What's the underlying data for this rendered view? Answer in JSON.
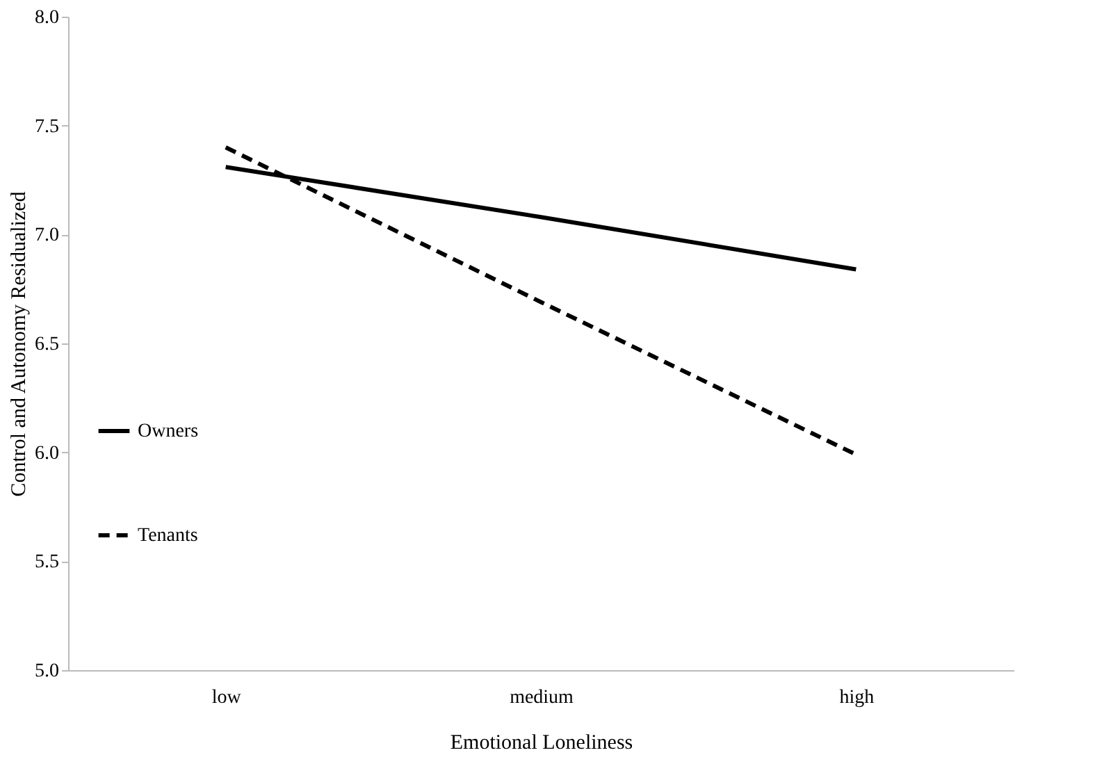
{
  "chart_data": {
    "type": "line",
    "xlabel": "Emotional Loneliness",
    "ylabel": "Control and Autonomy Residualized",
    "categories": [
      "low",
      "medium",
      "high"
    ],
    "series": [
      {
        "name": "Owners",
        "color": "#000000",
        "line_style": "solid",
        "values": [
          7.31,
          7.08,
          6.84
        ]
      },
      {
        "name": "Tenants",
        "color": "#000000",
        "line_style": "dashed",
        "values": [
          7.4,
          6.69,
          5.99
        ]
      }
    ],
    "ylim": [
      5.0,
      8.0
    ],
    "yticks": [
      {
        "value": 5.0,
        "label": "5.0"
      },
      {
        "value": 5.5,
        "label": "5.5"
      },
      {
        "value": 6.0,
        "label": "6.0"
      },
      {
        "value": 6.5,
        "label": "6.5"
      },
      {
        "value": 7.0,
        "label": "7.0"
      },
      {
        "value": 7.5,
        "label": "7.5"
      },
      {
        "value": 8.0,
        "label": "8.0"
      }
    ],
    "grid": false,
    "legend": "left",
    "marker": "none"
  }
}
